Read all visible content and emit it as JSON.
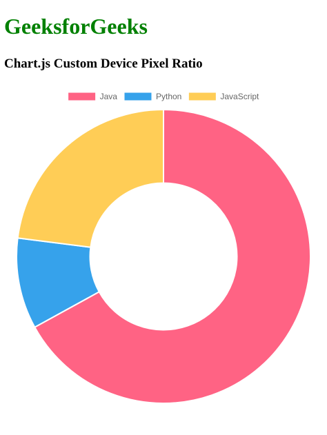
{
  "page": {
    "site_title": "GeeksforGeeks",
    "subtitle": "Chart.js Custom Device Pixel Ratio"
  },
  "chart_data": {
    "type": "doughnut",
    "categories": [
      "Java",
      "Python",
      "JavaScript"
    ],
    "values": [
      67,
      10,
      23
    ],
    "colors": [
      "#ff6384",
      "#36a2eb",
      "#ffcd56"
    ],
    "border_color": "#ffffff",
    "legend": {
      "position": "top",
      "entries": [
        "Java",
        "Python",
        "JavaScript"
      ]
    },
    "cutout_percent": 50
  }
}
